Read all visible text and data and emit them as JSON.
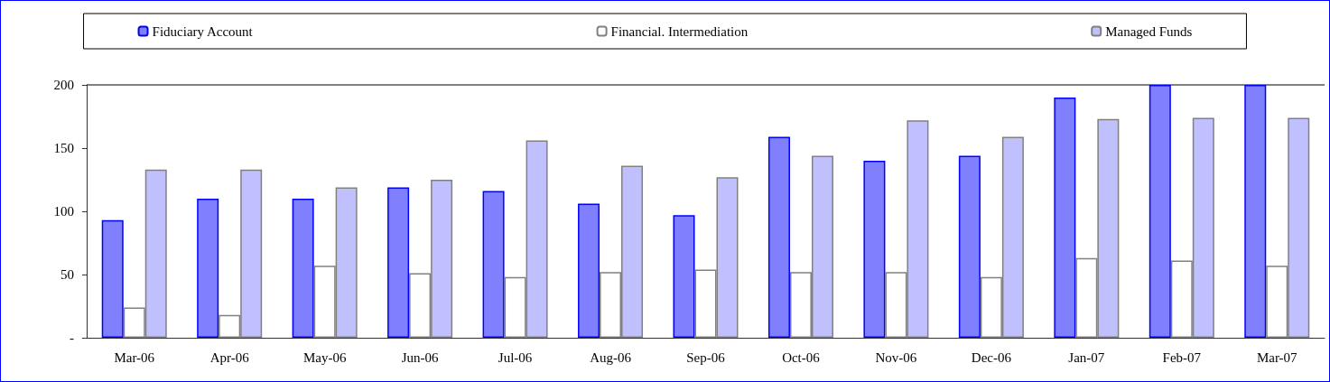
{
  "chart_data": {
    "type": "bar",
    "categories": [
      "Mar-06",
      "Apr-06",
      "May-06",
      "Jun-06",
      "Jul-06",
      "Aug-06",
      "Sep-06",
      "Oct-06",
      "Nov-06",
      "Dec-06",
      "Jan-07",
      "Feb-07",
      "Mar-07"
    ],
    "series": [
      {
        "name": "Fiduciary Account",
        "color": "#8080ff",
        "values": [
          93,
          110,
          110,
          119,
          116,
          106,
          97,
          159,
          140,
          144,
          190,
          200,
          200
        ]
      },
      {
        "name": "Financial. Intermediation",
        "color": "#ffffff",
        "values": [
          24,
          18,
          57,
          51,
          48,
          52,
          54,
          52,
          52,
          48,
          63,
          61,
          57
        ]
      },
      {
        "name": "Managed Funds",
        "color": "#c0c0ff",
        "values": [
          133,
          133,
          119,
          125,
          156,
          136,
          127,
          144,
          172,
          159,
          173,
          174,
          174
        ]
      }
    ],
    "ylim": [
      0,
      200
    ],
    "yticks": [
      {
        "value": 0,
        "label": "-"
      },
      50,
      100,
      150,
      200
    ],
    "grid": false,
    "legend": "top"
  }
}
